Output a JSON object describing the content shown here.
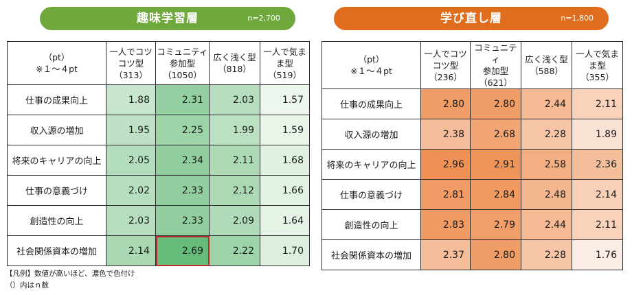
{
  "chart_data": [
    {
      "type": "table",
      "title": "趣味学習層",
      "n_label": "n=2,700",
      "corner": [
        "（pt）",
        "※１～４pt"
      ],
      "columns": [
        {
          "lines": [
            "一人でコツ",
            "コツ型",
            "（313）"
          ]
        },
        {
          "lines": [
            "コミュニティ",
            "参加型",
            "（1050）"
          ]
        },
        {
          "lines": [
            "広く浅く型",
            "（818）"
          ]
        },
        {
          "lines": [
            "一人で気ま",
            "ま型",
            "（519）"
          ]
        }
      ],
      "rows": [
        "仕事の成果向上",
        "収入源の増加",
        "将来のキャリアの向上",
        "仕事の意義づけ",
        "創造性の向上",
        "社会関係資本の増加"
      ],
      "values": [
        [
          1.88,
          2.31,
          2.03,
          1.57
        ],
        [
          1.95,
          2.25,
          1.99,
          1.59
        ],
        [
          2.05,
          2.34,
          2.11,
          1.68
        ],
        [
          2.02,
          2.33,
          2.12,
          1.66
        ],
        [
          2.03,
          2.33,
          2.09,
          1.64
        ],
        [
          2.14,
          2.69,
          2.22,
          1.7
        ]
      ],
      "highlight_cell": [
        5,
        1
      ],
      "color_scale": {
        "low": "#f5faf3",
        "high": "#66bb7a",
        "min": 1.5,
        "max": 2.7
      },
      "banner_color": "#6fa83c",
      "highlight_color": "#c0282d"
    },
    {
      "type": "table",
      "title": "学び直し層",
      "n_label": "n=1,800",
      "corner": [
        "（pt）",
        "※１～４pt"
      ],
      "columns": [
        {
          "lines": [
            "一人でコツ",
            "コツ型",
            "（236）"
          ]
        },
        {
          "lines": [
            "コミュニティ",
            "参加型",
            "（621）"
          ]
        },
        {
          "lines": [
            "広く浅く型",
            "（588）"
          ]
        },
        {
          "lines": [
            "一人で気ま",
            "ま型",
            "（355）"
          ]
        }
      ],
      "rows": [
        "仕事の成果向上",
        "収入源の増加",
        "将来のキャリアの向上",
        "仕事の意義づけ",
        "創造性の向上",
        "社会関係資本の増加"
      ],
      "values": [
        [
          2.8,
          2.8,
          2.44,
          2.11
        ],
        [
          2.38,
          2.68,
          2.28,
          1.89
        ],
        [
          2.96,
          2.91,
          2.58,
          2.36
        ],
        [
          2.81,
          2.84,
          2.48,
          2.14
        ],
        [
          2.83,
          2.79,
          2.44,
          2.11
        ],
        [
          2.37,
          2.8,
          2.28,
          1.76
        ]
      ],
      "color_scale": {
        "low": "#fcf1ec",
        "high": "#ef8e4f",
        "min": 1.7,
        "max": 3.0
      },
      "banner_color": "#df6d1d"
    }
  ],
  "legend": {
    "line1": "【凡例】数値が高いほど、濃色で色付け",
    "line2": "（）内はｎ数"
  }
}
